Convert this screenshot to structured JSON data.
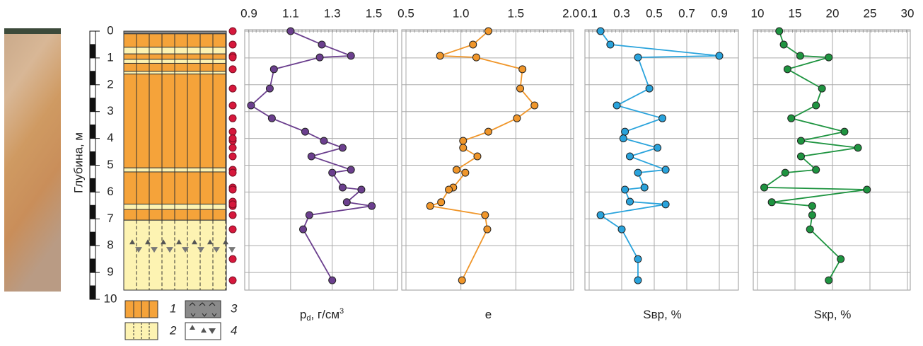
{
  "depth_axis": {
    "label": "Глубина, м",
    "lim": [
      0,
      10
    ],
    "ticks": [
      0,
      1,
      2,
      3,
      4,
      5,
      6,
      7,
      8,
      9,
      10
    ]
  },
  "legend": {
    "items": [
      "1",
      "2",
      "3",
      "4"
    ]
  },
  "chart_data": [
    {
      "type": "line",
      "color": "#6b3f8e",
      "xlabel": {
        "main": "p",
        "sub": "d",
        "unit": ", г/см",
        "sup": "3"
      },
      "xlim": [
        0.9,
        1.6
      ],
      "xticks": [
        0.9,
        1.1,
        1.3,
        1.5
      ],
      "depth": [
        0,
        0.5,
        0.92,
        0.98,
        1.42,
        2.14,
        2.77,
        3.25,
        3.75,
        4.09,
        4.35,
        4.67,
        5.17,
        5.28,
        5.83,
        5.91,
        6.38,
        6.52,
        6.86,
        7.39,
        9.29
      ],
      "values": [
        1.1,
        1.25,
        1.39,
        1.24,
        1.02,
        1.0,
        0.91,
        1.01,
        1.17,
        1.26,
        1.35,
        1.2,
        1.39,
        1.3,
        1.35,
        1.44,
        1.37,
        1.49,
        1.19,
        1.16,
        1.3
      ]
    },
    {
      "type": "line",
      "color": "#f0962a",
      "xlabel": {
        "main": "e"
      },
      "xlim": [
        0.5,
        2.0
      ],
      "xticks": [
        0.5,
        {
          "value": 1,
          "label": "1.0"
        },
        1.5,
        {
          "value": 2,
          "label": "2.0"
        }
      ],
      "depth": [
        0,
        0.5,
        0.92,
        0.98,
        1.42,
        2.14,
        2.77,
        3.25,
        3.75,
        4.09,
        4.35,
        4.67,
        5.17,
        5.28,
        5.83,
        5.91,
        6.38,
        6.52,
        6.86,
        7.39,
        9.29
      ],
      "values": [
        1.25,
        1.11,
        0.81,
        1.14,
        1.56,
        1.54,
        1.67,
        1.51,
        1.25,
        1.02,
        1.02,
        1.15,
        0.96,
        1.04,
        0.93,
        0.89,
        0.82,
        0.72,
        1.22,
        1.24,
        1.01
      ]
    },
    {
      "type": "line",
      "color": "#29a3dc",
      "xlabel": {
        "main": "Sвр, %"
      },
      "xlim": [
        0.1,
        1.0
      ],
      "xticks": [
        0.1,
        0.3,
        0.5,
        0.7,
        0.9
      ],
      "depth": [
        0,
        0.5,
        0.92,
        0.98,
        2.14,
        2.77,
        3.25,
        3.75,
        4.0,
        4.35,
        4.67,
        5.17,
        5.28,
        5.83,
        5.91,
        6.36,
        6.46,
        6.86,
        7.39,
        8.5,
        9.29
      ],
      "values": [
        0.17,
        0.23,
        0.9,
        0.4,
        0.47,
        0.27,
        0.55,
        0.32,
        0.31,
        0.52,
        0.35,
        0.57,
        0.4,
        0.44,
        0.32,
        0.35,
        0.57,
        0.17,
        0.3,
        0.4,
        0.4
      ]
    },
    {
      "type": "line",
      "color": "#1e9440",
      "xlabel": {
        "main": "Sкр, %"
      },
      "xlim": [
        10,
        30
      ],
      "xticks": [
        10,
        15,
        20,
        25,
        30
      ],
      "depth": [
        0,
        0.5,
        0.92,
        0.98,
        1.42,
        2.14,
        2.77,
        3.25,
        3.75,
        4.09,
        4.35,
        4.67,
        5.17,
        5.28,
        5.83,
        5.91,
        6.38,
        6.52,
        6.86,
        7.39,
        8.5,
        9.29
      ],
      "values": [
        12.9,
        13.5,
        15.7,
        19.5,
        14.0,
        18.6,
        17.8,
        14.5,
        21.6,
        15.8,
        23.4,
        15.8,
        17.8,
        13.7,
        10.9,
        24.6,
        11.9,
        17.3,
        17.3,
        17.0,
        21.1,
        19.5
      ]
    }
  ]
}
